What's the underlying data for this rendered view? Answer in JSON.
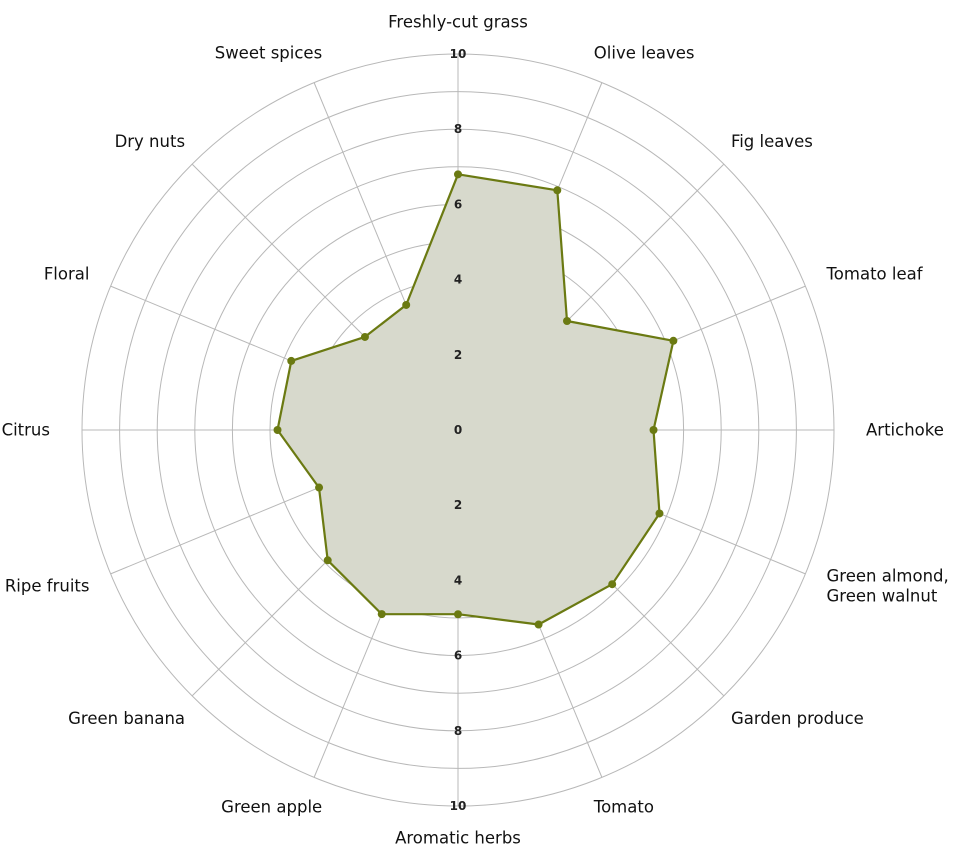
{
  "colors": {
    "series": "#6b7a12",
    "fill": "#d7d9cc",
    "grid": "#b8b8b8"
  },
  "chart_data": {
    "type": "radar",
    "title": "",
    "rmin": 0,
    "rmax": 10,
    "grid": true,
    "ticks_top": [
      "2",
      "4",
      "6",
      "8",
      "10"
    ],
    "ticks_bottom": [
      "2",
      "4",
      "6",
      "8",
      "10"
    ],
    "tick_zero": "0",
    "categories": [
      [
        "Freshly-cut grass"
      ],
      [
        "Olive leaves"
      ],
      [
        "Fig leaves"
      ],
      [
        "Tomato leaf"
      ],
      [
        "Artichoke"
      ],
      [
        "Green almond,",
        "Green walnut"
      ],
      [
        "Garden produce"
      ],
      [
        "Tomato"
      ],
      [
        "Aromatic herbs"
      ],
      [
        "Green apple"
      ],
      [
        "Green banana"
      ],
      [
        "Ripe fruits"
      ],
      [
        "Citrus"
      ],
      [
        "Floral"
      ],
      [
        "Dry nuts"
      ],
      [
        "Sweet spices"
      ]
    ],
    "series": [
      {
        "values": [
          6.8,
          6.9,
          4.1,
          6.2,
          5.2,
          5.8,
          5.8,
          5.6,
          4.9,
          5.3,
          4.9,
          4.0,
          4.8,
          4.8,
          3.5,
          3.6
        ]
      }
    ]
  }
}
